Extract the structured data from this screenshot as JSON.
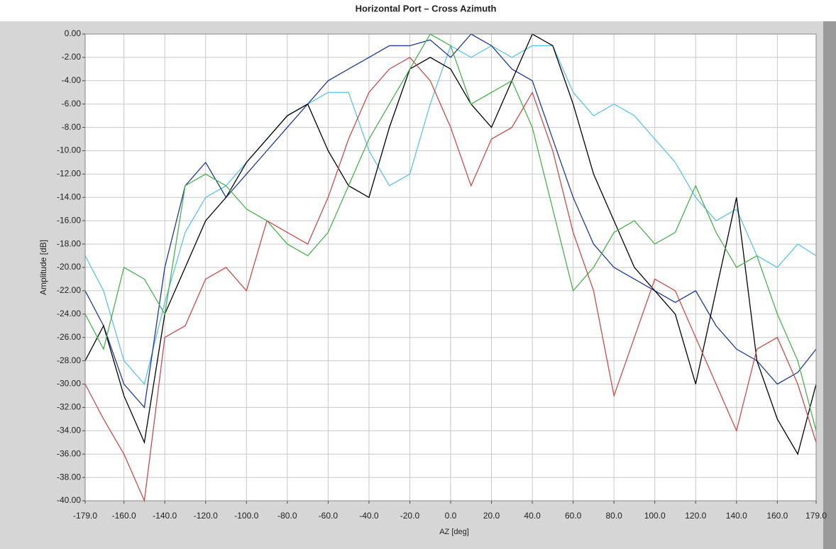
{
  "chart_data": {
    "type": "line",
    "title": "Horizontal Port – Cross Azimuth",
    "x_label": "AZ  [deg]",
    "y_label": "Amplitude [dB]",
    "x": [
      -179,
      -170,
      -160,
      -150,
      -140,
      -130,
      -120,
      -110,
      -100,
      -90,
      -80,
      -70,
      -60,
      -50,
      -40,
      -30,
      -20,
      -10,
      0,
      10,
      20,
      30,
      40,
      50,
      60,
      70,
      80,
      90,
      100,
      110,
      120,
      130,
      140,
      150,
      160,
      170,
      179
    ],
    "series": [
      {
        "color": "#5fc2e8",
        "values": [
          -19,
          -22,
          -28,
          -30,
          -23,
          -17,
          -14,
          -13,
          -11,
          -9,
          -7,
          -6,
          -5,
          -5,
          -10,
          -13,
          -12,
          -6,
          -1,
          -2,
          -1,
          -2,
          -1,
          -1,
          -5,
          -7,
          -6,
          -7,
          -9,
          -11,
          -14,
          -16,
          -15,
          -19,
          -20,
          -18,
          -19
        ]
      },
      {
        "color": "#1f3a93",
        "values": [
          -22,
          -25,
          -30,
          -32,
          -20,
          -13,
          -11,
          -14,
          -12,
          -10,
          -8,
          -6,
          -4,
          -3,
          -2,
          -1,
          -1,
          -0.5,
          -2,
          0,
          -1,
          -3,
          -4,
          -9,
          -14,
          -18,
          -20,
          -21,
          -22,
          -23,
          -22,
          -25,
          -27,
          -28,
          -30,
          -29,
          -27
        ]
      },
      {
        "color": "#000000",
        "values": [
          -28,
          -25,
          -31,
          -35,
          -24,
          -20,
          -16,
          -14,
          -11,
          -9,
          -7,
          -6,
          -10,
          -13,
          -14,
          -8,
          -3,
          -2,
          -3,
          -6,
          -8,
          -4,
          0,
          -1,
          -6,
          -12,
          -16,
          -20,
          -22,
          -24,
          -30,
          -22,
          -14,
          -28,
          -33,
          -36,
          -30
        ]
      },
      {
        "color": "#4cb050",
        "values": [
          -24,
          -27,
          -20,
          -21,
          -24,
          -13,
          -12,
          -13,
          -15,
          -16,
          -18,
          -19,
          -17,
          -13,
          -9,
          -6,
          -3,
          0,
          -1,
          -6,
          -5,
          -4,
          -8,
          -15,
          -22,
          -20,
          -17,
          -16,
          -18,
          -17,
          -13,
          -17,
          -20,
          -19,
          -24,
          -28,
          -34
        ]
      },
      {
        "color": "#c94c4c",
        "values": [
          -30,
          -33,
          -36,
          -40,
          -26,
          -25,
          -21,
          -20,
          -22,
          -16,
          -17,
          -18,
          -14,
          -9,
          -5,
          -3,
          -2,
          -4,
          -8,
          -13,
          -9,
          -8,
          -5,
          -10,
          -17,
          -22,
          -31,
          -26,
          -21,
          -22,
          -26,
          -30,
          -34,
          -27,
          -26,
          -30,
          -35
        ]
      }
    ],
    "xlim": [
      -179,
      179
    ],
    "ylim": [
      -40,
      0
    ],
    "xticks": [
      {
        "value": -179,
        "label": "-179.0"
      },
      {
        "value": -160,
        "label": "-160.0"
      },
      {
        "value": -140,
        "label": "-140.0"
      },
      {
        "value": -120,
        "label": "-120.0"
      },
      {
        "value": -100,
        "label": "-100.0"
      },
      {
        "value": -80,
        "label": "-80.0"
      },
      {
        "value": -60,
        "label": "-60.0"
      },
      {
        "value": -40,
        "label": "-40.0"
      },
      {
        "value": -20,
        "label": "-20.0"
      },
      {
        "value": 0,
        "label": "0.0"
      },
      {
        "value": 20,
        "label": "20.0"
      },
      {
        "value": 40,
        "label": "40.0"
      },
      {
        "value": 60,
        "label": "60.0"
      },
      {
        "value": 80,
        "label": "80.0"
      },
      {
        "value": 100,
        "label": "100.0"
      },
      {
        "value": 120,
        "label": "120.0"
      },
      {
        "value": 140,
        "label": "140.0"
      },
      {
        "value": 160,
        "label": "160.0"
      },
      {
        "value": 179,
        "label": "179.0"
      }
    ],
    "yticks": [
      {
        "value": 0,
        "label": "0.00"
      },
      {
        "value": -2,
        "label": "-2.00"
      },
      {
        "value": -4,
        "label": "-4.00"
      },
      {
        "value": -6,
        "label": "-6.00"
      },
      {
        "value": -8,
        "label": "-8.00"
      },
      {
        "value": -10,
        "label": "-10.00"
      },
      {
        "value": -12,
        "label": "-12.00"
      },
      {
        "value": -14,
        "label": "-14.00"
      },
      {
        "value": -16,
        "label": "-16.00"
      },
      {
        "value": -18,
        "label": "-18.00"
      },
      {
        "value": -20,
        "label": "-20.00"
      },
      {
        "value": -22,
        "label": "-22.00"
      },
      {
        "value": -24,
        "label": "-24.00"
      },
      {
        "value": -26,
        "label": "-26.00"
      },
      {
        "value": -28,
        "label": "-28.00"
      },
      {
        "value": -30,
        "label": "-30.00"
      },
      {
        "value": -32,
        "label": "-32.00"
      },
      {
        "value": -34,
        "label": "-34.00"
      },
      {
        "value": -36,
        "label": "-36.00"
      },
      {
        "value": -38,
        "label": "-38.00"
      },
      {
        "value": -40,
        "label": "-40.00"
      }
    ],
    "grid": true
  }
}
